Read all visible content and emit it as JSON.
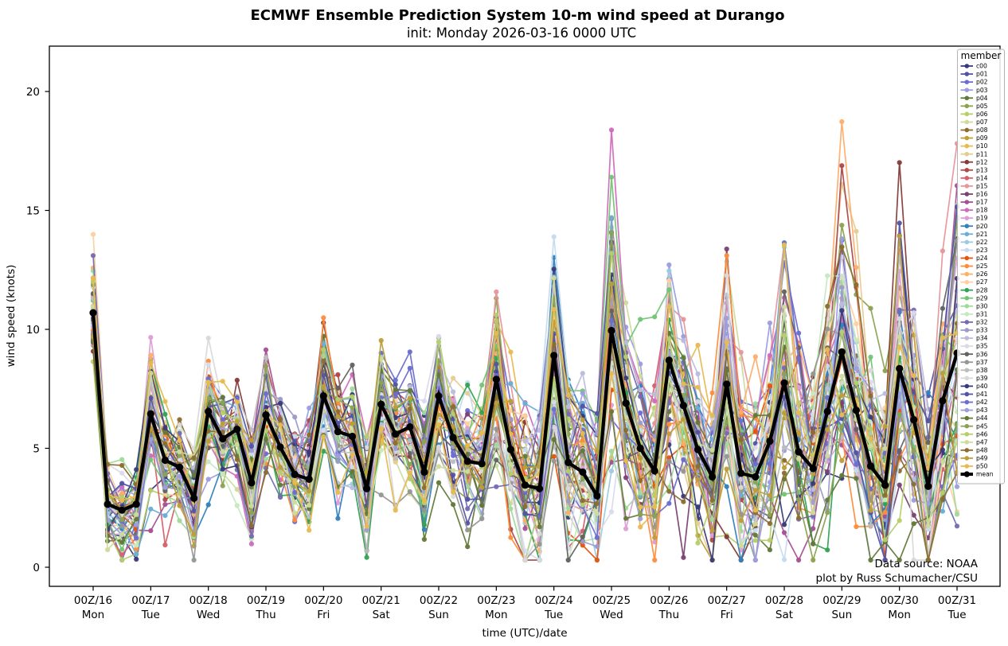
{
  "figure": {
    "title": "ECMWF Ensemble Prediction System 10-m wind speed at Durango",
    "subtitle": "init: Monday 2026-03-16 0000 UTC",
    "annotation_line1": "Data source: NOAA",
    "annotation_line2": "plot by Russ Schumacher/CSU"
  },
  "chart_data": {
    "type": "line",
    "title": "ECMWF Ensemble Prediction System 10-m wind speed at Durango",
    "subtitle": "init: Monday 2026-03-16 0000 UTC",
    "xlabel": "time (UTC)/date",
    "ylabel": "wind speed (knots)",
    "ylim": [
      -0.8,
      21.9
    ],
    "yticks": [
      0,
      5,
      10,
      15,
      20
    ],
    "grid": false,
    "legend_title": "member",
    "legend_position": "upper right",
    "time_step_hours": 6,
    "x_tick_labels": [
      {
        "utc": "00Z/16",
        "day": "Mon"
      },
      {
        "utc": "00Z/17",
        "day": "Tue"
      },
      {
        "utc": "00Z/18",
        "day": "Wed"
      },
      {
        "utc": "00Z/19",
        "day": "Thu"
      },
      {
        "utc": "00Z/20",
        "day": "Fri"
      },
      {
        "utc": "00Z/21",
        "day": "Sat"
      },
      {
        "utc": "00Z/22",
        "day": "Sun"
      },
      {
        "utc": "00Z/23",
        "day": "Mon"
      },
      {
        "utc": "00Z/24",
        "day": "Tue"
      },
      {
        "utc": "00Z/25",
        "day": "Wed"
      },
      {
        "utc": "00Z/26",
        "day": "Thu"
      },
      {
        "utc": "00Z/27",
        "day": "Fri"
      },
      {
        "utc": "00Z/28",
        "day": "Sat"
      },
      {
        "utc": "00Z/29",
        "day": "Sun"
      },
      {
        "utc": "00Z/30",
        "day": "Mon"
      },
      {
        "utc": "00Z/31",
        "day": "Tue"
      }
    ],
    "mean_series": {
      "name": "mean",
      "color": "#000000",
      "values": [
        10.7,
        2.65,
        2.4,
        2.65,
        6.45,
        4.5,
        4.2,
        2.9,
        6.55,
        5.4,
        5.8,
        3.55,
        6.4,
        5.05,
        3.9,
        3.7,
        7.2,
        5.7,
        5.5,
        3.3,
        6.85,
        5.6,
        5.9,
        4.0,
        7.2,
        5.45,
        4.45,
        4.35,
        7.9,
        4.95,
        3.45,
        3.3,
        8.9,
        4.4,
        4.0,
        3.0,
        9.95,
        6.9,
        5.0,
        4.05,
        8.7,
        6.8,
        4.95,
        3.8,
        7.7,
        3.95,
        3.8,
        5.3,
        7.75,
        4.85,
        4.15,
        6.55,
        9.05,
        6.6,
        4.25,
        3.45,
        8.35,
        6.2,
        3.4,
        7.0,
        9.0
      ]
    },
    "ensemble_spread": [
      1.3,
      1.0,
      1.0,
      1.0,
      1.6,
      1.2,
      1.2,
      1.2,
      1.4,
      1.3,
      1.3,
      1.3,
      1.5,
      1.3,
      1.3,
      1.3,
      1.5,
      1.4,
      1.4,
      1.4,
      1.6,
      1.5,
      1.5,
      1.5,
      1.7,
      1.5,
      1.5,
      1.5,
      2.2,
      1.7,
      1.7,
      1.7,
      2.6,
      1.8,
      1.8,
      1.8,
      3.2,
      2.5,
      2.0,
      2.0,
      3.3,
      2.6,
      2.2,
      2.0,
      3.2,
      2.4,
      2.2,
      2.2,
      3.4,
      2.6,
      2.3,
      2.4,
      3.4,
      2.7,
      2.4,
      2.4,
      3.6,
      2.8,
      2.5,
      3.0,
      4.0
    ],
    "members": [
      {
        "name": "c00",
        "color": "#393b79"
      },
      {
        "name": "p01",
        "color": "#5254a3"
      },
      {
        "name": "p02",
        "color": "#6b6ecf"
      },
      {
        "name": "p03",
        "color": "#9c9ede"
      },
      {
        "name": "p04",
        "color": "#637939"
      },
      {
        "name": "p05",
        "color": "#8ca252"
      },
      {
        "name": "p06",
        "color": "#b5cf6b"
      },
      {
        "name": "p07",
        "color": "#cedb9c"
      },
      {
        "name": "p08",
        "color": "#8c6d31"
      },
      {
        "name": "p09",
        "color": "#bd9e39"
      },
      {
        "name": "p10",
        "color": "#e7ba52"
      },
      {
        "name": "p11",
        "color": "#e7cb94"
      },
      {
        "name": "p12",
        "color": "#843c39"
      },
      {
        "name": "p13",
        "color": "#ad494a"
      },
      {
        "name": "p14",
        "color": "#d6616b"
      },
      {
        "name": "p15",
        "color": "#e7969c"
      },
      {
        "name": "p16",
        "color": "#7b4173"
      },
      {
        "name": "p17",
        "color": "#a55194"
      },
      {
        "name": "p18",
        "color": "#ce6dbd"
      },
      {
        "name": "p19",
        "color": "#de9ed6"
      },
      {
        "name": "p20",
        "color": "#3182bd"
      },
      {
        "name": "p21",
        "color": "#6baed6"
      },
      {
        "name": "p22",
        "color": "#9ecae1"
      },
      {
        "name": "p23",
        "color": "#c6dbef"
      },
      {
        "name": "p24",
        "color": "#e6550d"
      },
      {
        "name": "p25",
        "color": "#fd8d3c"
      },
      {
        "name": "p26",
        "color": "#fdae6b"
      },
      {
        "name": "p27",
        "color": "#fdd0a2"
      },
      {
        "name": "p28",
        "color": "#31a354"
      },
      {
        "name": "p29",
        "color": "#74c476"
      },
      {
        "name": "p30",
        "color": "#a1d99b"
      },
      {
        "name": "p31",
        "color": "#c7e9c0"
      },
      {
        "name": "p32",
        "color": "#756bb1"
      },
      {
        "name": "p33",
        "color": "#9e9ac8"
      },
      {
        "name": "p34",
        "color": "#bcbddc"
      },
      {
        "name": "p35",
        "color": "#dadaeb"
      },
      {
        "name": "p36",
        "color": "#636363"
      },
      {
        "name": "p37",
        "color": "#969696"
      },
      {
        "name": "p38",
        "color": "#bdbdbd"
      },
      {
        "name": "p39",
        "color": "#d9d9d9"
      },
      {
        "name": "p40",
        "color": "#393b79"
      },
      {
        "name": "p41",
        "color": "#5254a3"
      },
      {
        "name": "p42",
        "color": "#6b6ecf"
      },
      {
        "name": "p43",
        "color": "#9c9ede"
      },
      {
        "name": "p44",
        "color": "#637939"
      },
      {
        "name": "p45",
        "color": "#8ca252"
      },
      {
        "name": "p46",
        "color": "#b5cf6b"
      },
      {
        "name": "p47",
        "color": "#cedb9c"
      },
      {
        "name": "p48",
        "color": "#8c6d31"
      },
      {
        "name": "p49",
        "color": "#bd9e39"
      },
      {
        "name": "p50",
        "color": "#e7ba52"
      }
    ]
  }
}
